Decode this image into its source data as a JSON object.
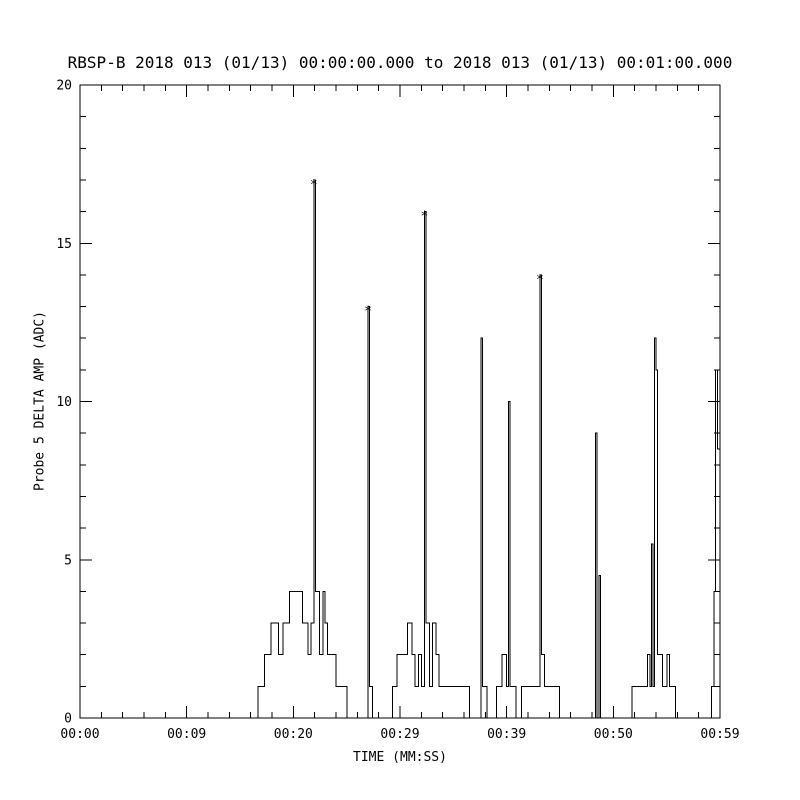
{
  "page": {
    "background": "#ffffff"
  },
  "chart_data": {
    "type": "line",
    "title": "RBSP-B 2018 013 (01/13) 00:00:00.000 to 2018 013 (01/13) 00:01:00.000",
    "xlabel": "TIME (MM:SS)",
    "ylabel": "Probe 5 DELTA AMP (ADC)",
    "xlim": [
      0,
      59
    ],
    "ylim": [
      0,
      20
    ],
    "grid": "off",
    "legend": "none",
    "axis_color": "#000000",
    "line_color": "#000000",
    "marker_color": "#cc3322",
    "marker_glyph": "*",
    "x_ticks": {
      "values": [
        0,
        9.8333,
        19.6667,
        29.5,
        39.3333,
        49.1667,
        59
      ],
      "labels": [
        "00:00",
        "00:09",
        "00:20",
        "00:29",
        "00:39",
        "00:50",
        "00:59"
      ]
    },
    "x_minor_divisions": 5,
    "y_ticks": {
      "values": [
        0,
        5,
        10,
        15,
        20
      ],
      "labels": [
        "0",
        "5",
        "10",
        "15",
        "20"
      ],
      "minor_step": 1
    },
    "series": [
      {
        "name": "Probe 5 DELTA AMP",
        "step": "after",
        "points": [
          [
            0,
            0
          ],
          [
            16.4,
            1
          ],
          [
            17.0,
            2
          ],
          [
            17.6,
            3
          ],
          [
            18.3,
            2
          ],
          [
            18.7,
            3
          ],
          [
            19.3,
            4
          ],
          [
            20.5,
            3
          ],
          [
            21.0,
            2
          ],
          [
            21.3,
            3
          ],
          [
            21.55,
            17
          ],
          [
            21.7,
            4
          ],
          [
            22.1,
            2
          ],
          [
            22.4,
            4
          ],
          [
            22.6,
            3
          ],
          [
            22.8,
            2
          ],
          [
            23.6,
            1
          ],
          [
            24.6,
            0
          ],
          [
            26.55,
            13
          ],
          [
            26.7,
            1
          ],
          [
            26.95,
            0
          ],
          [
            28.8,
            1
          ],
          [
            29.2,
            2
          ],
          [
            30.2,
            3
          ],
          [
            30.6,
            2
          ],
          [
            30.9,
            1
          ],
          [
            31.2,
            2
          ],
          [
            31.5,
            1
          ],
          [
            31.75,
            16
          ],
          [
            31.9,
            3
          ],
          [
            32.2,
            1
          ],
          [
            32.5,
            3
          ],
          [
            32.8,
            2
          ],
          [
            33.1,
            1
          ],
          [
            35.9,
            0
          ],
          [
            36.95,
            12
          ],
          [
            37.1,
            1
          ],
          [
            37.5,
            0
          ],
          [
            38.4,
            1
          ],
          [
            38.9,
            2
          ],
          [
            39.3,
            1
          ],
          [
            39.5,
            10
          ],
          [
            39.65,
            1
          ],
          [
            40.2,
            0
          ],
          [
            40.7,
            1
          ],
          [
            42.4,
            14
          ],
          [
            42.55,
            2
          ],
          [
            42.8,
            1
          ],
          [
            44.2,
            0
          ],
          [
            47.5,
            9
          ],
          [
            47.65,
            0
          ],
          [
            47.85,
            4.5
          ],
          [
            48.0,
            0
          ],
          [
            50.9,
            1
          ],
          [
            52.3,
            2
          ],
          [
            52.55,
            1
          ],
          [
            52.7,
            5.5
          ],
          [
            52.8,
            1
          ],
          [
            52.95,
            12
          ],
          [
            53.1,
            11
          ],
          [
            53.25,
            2
          ],
          [
            53.7,
            1
          ],
          [
            54.1,
            2
          ],
          [
            54.35,
            1
          ],
          [
            54.9,
            0
          ],
          [
            58.2,
            1
          ],
          [
            58.45,
            4
          ],
          [
            58.6,
            11
          ],
          [
            58.75,
            8.5
          ]
        ]
      }
    ],
    "peak_markers": [
      [
        21.55,
        17
      ],
      [
        26.55,
        13
      ],
      [
        31.75,
        16
      ],
      [
        42.4,
        14
      ]
    ]
  }
}
